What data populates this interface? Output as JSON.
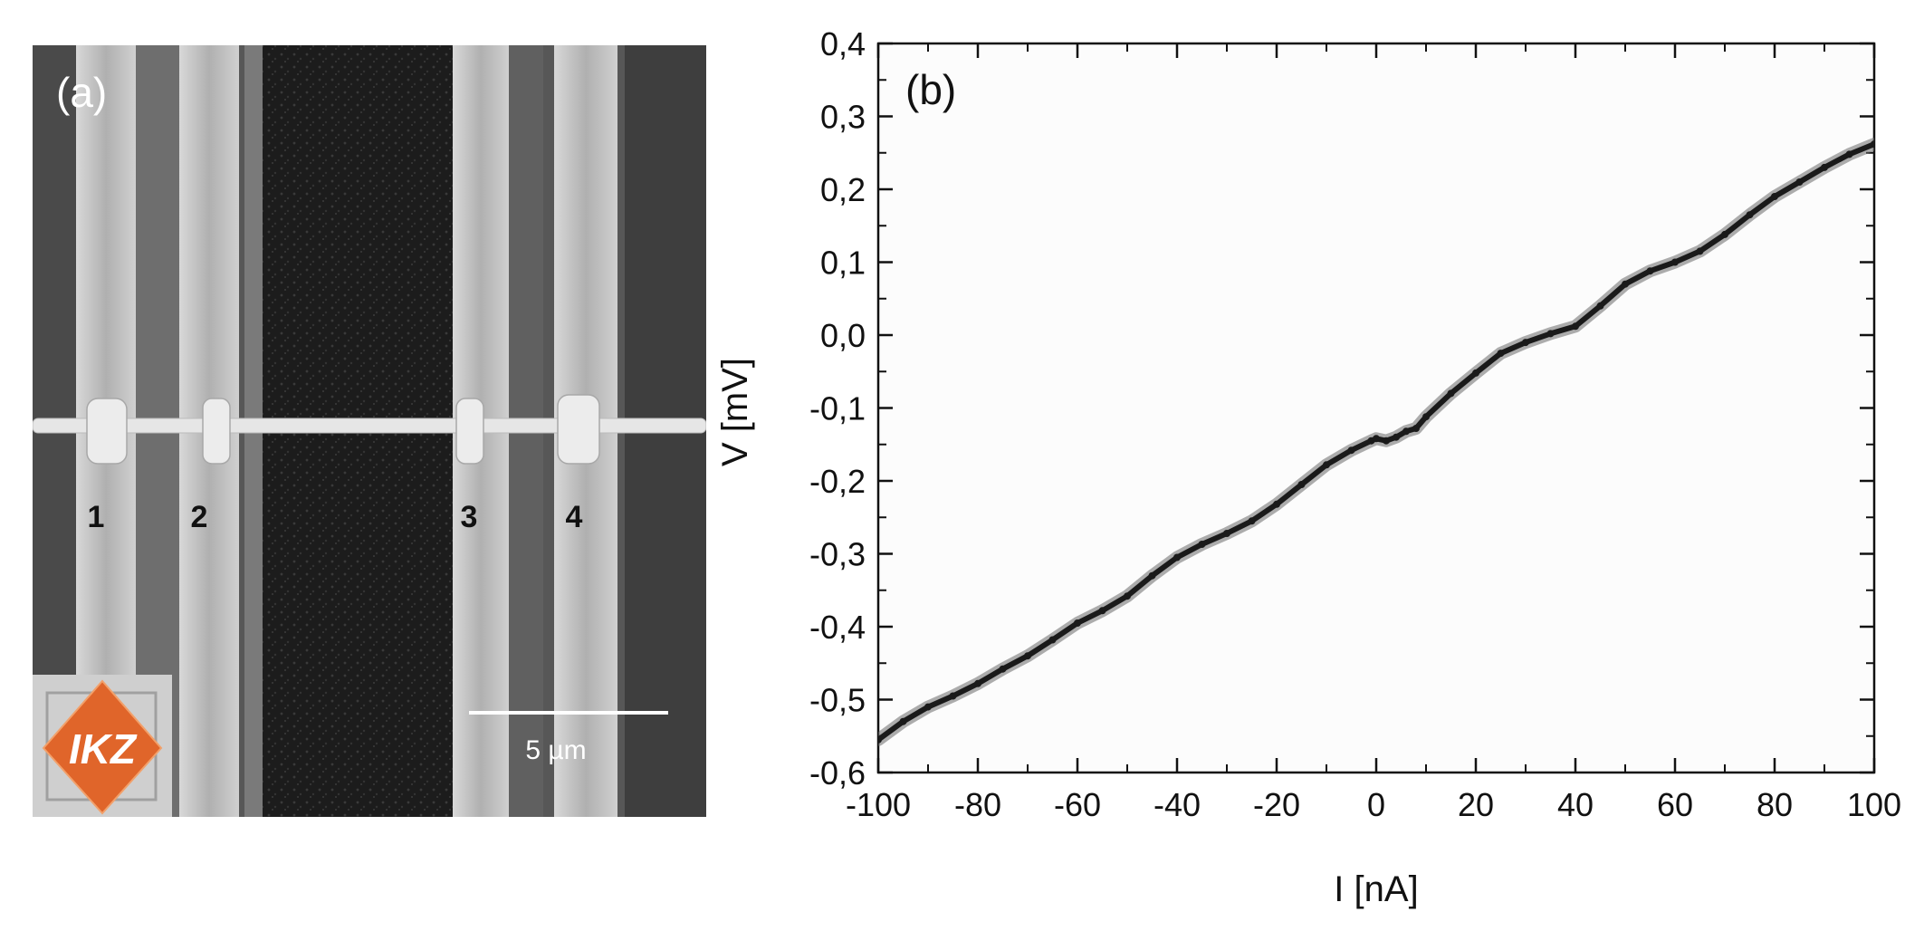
{
  "panel_a": {
    "label": "(a)",
    "contact_labels": [
      "1",
      "2",
      "3",
      "4"
    ],
    "scale_bar_label": "5 µm",
    "logo_text": "IKZ"
  },
  "panel_b": {
    "label": "(b)"
  },
  "colors": {
    "sem_background": "#5a5a5a",
    "electrode": "#b5b5b5",
    "trench": "#1e1e1e",
    "logo_orange": "#e0652a",
    "curve": "#1a1a1a"
  },
  "chart_data": {
    "type": "line",
    "title": "",
    "xlabel": "I [nA]",
    "ylabel": "V [mV]",
    "xlim": [
      -100,
      100
    ],
    "ylim": [
      -0.6,
      0.4
    ],
    "xticks": [
      -100,
      -80,
      -60,
      -40,
      -20,
      0,
      20,
      40,
      60,
      80,
      100
    ],
    "yticks": [
      -0.6,
      -0.5,
      -0.4,
      -0.3,
      -0.2,
      -0.1,
      0.0,
      0.1,
      0.2,
      0.3,
      0.4
    ],
    "xtick_labels": [
      "-100",
      "-80",
      "-60",
      "-40",
      "-20",
      "0",
      "20",
      "40",
      "60",
      "80",
      "100"
    ],
    "ytick_labels": [
      "-0,6",
      "-0,5",
      "-0,4",
      "-0,3",
      "-0,2",
      "-0,1",
      "0,0",
      "0,1",
      "0,2",
      "0,3",
      "0,4"
    ],
    "grid": false,
    "series": [
      {
        "x": [
          -100,
          -95,
          -90,
          -85,
          -80,
          -75,
          -70,
          -65,
          -60,
          -55,
          -50,
          -45,
          -40,
          -35,
          -30,
          -25,
          -20,
          -15,
          -10,
          -5,
          -1,
          0,
          2,
          4,
          6,
          8,
          10,
          15,
          20,
          25,
          30,
          35,
          40,
          45,
          50,
          55,
          60,
          65,
          70,
          75,
          80,
          85,
          90,
          95,
          100
        ],
        "y": [
          -0.555,
          -0.53,
          -0.51,
          -0.495,
          -0.478,
          -0.458,
          -0.44,
          -0.418,
          -0.395,
          -0.378,
          -0.358,
          -0.33,
          -0.305,
          -0.287,
          -0.272,
          -0.255,
          -0.232,
          -0.205,
          -0.178,
          -0.158,
          -0.145,
          -0.142,
          -0.145,
          -0.14,
          -0.132,
          -0.128,
          -0.112,
          -0.08,
          -0.052,
          -0.025,
          -0.01,
          0.002,
          0.012,
          0.04,
          0.07,
          0.088,
          0.1,
          0.115,
          0.138,
          0.165,
          0.19,
          0.21,
          0.23,
          0.248,
          0.262
        ]
      }
    ]
  }
}
